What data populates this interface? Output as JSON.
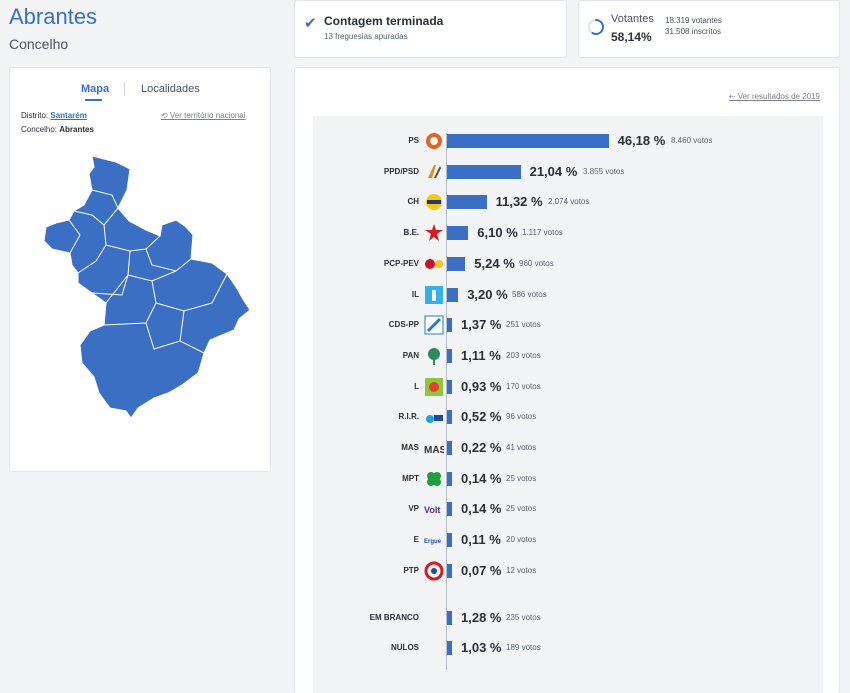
{
  "header": {
    "title": "Abrantes",
    "subtitle": "Concelho"
  },
  "status": {
    "icon": "check-icon",
    "title": "Contagem terminada",
    "subtitle": "13 freguesias apuradas"
  },
  "voters": {
    "label": "Votantes",
    "percent": "58,14%",
    "percent_value": 58.14,
    "count": "18.319 votantes",
    "registered": "31.508 inscritos"
  },
  "map_panel": {
    "tabs": {
      "map": "Mapa",
      "places": "Localidades"
    },
    "district_label": "Distrito:",
    "district_value": "Santarém",
    "county_label": "Concelho:",
    "county_value": "Abrantes",
    "national_link": "⟲ Ver território nacional",
    "map_color": "#3a6fc4"
  },
  "results": {
    "prev_link": "⇠ Ver resultados de 2019",
    "accent": "#3a6fc4",
    "rows": [
      {
        "party": "PS",
        "pct_value": 46.18,
        "pct": "46,18 %",
        "votes": "8.460 votos",
        "logo": "ps-logo",
        "logo_color": "#e8631c"
      },
      {
        "party": "PPD/PSD",
        "pct_value": 21.04,
        "pct": "21,04 %",
        "votes": "3.855 votos",
        "logo": "psd-logo",
        "logo_color": "#f08519"
      },
      {
        "party": "CH",
        "pct_value": 11.32,
        "pct": "11,32 %",
        "votes": "2.074 votos",
        "logo": "chega-logo",
        "logo_color": "#1e3b75"
      },
      {
        "party": "B.E.",
        "pct_value": 6.1,
        "pct": "6,10 %",
        "votes": "1.117 votos",
        "logo": "be-logo",
        "logo_color": "#d71920"
      },
      {
        "party": "PCP-PEV",
        "pct_value": 5.24,
        "pct": "5,24 %",
        "votes": "960 votos",
        "logo": "cdu-logo",
        "logo_color": "#c8102e"
      },
      {
        "party": "IL",
        "pct_value": 3.2,
        "pct": "3,20 %",
        "votes": "586 votos",
        "logo": "il-logo",
        "logo_color": "#35b0e8"
      },
      {
        "party": "CDS-PP",
        "pct_value": 1.37,
        "pct": "1,37 %",
        "votes": "251 votos",
        "logo": "cds-logo",
        "logo_color": "#1f7fc1"
      },
      {
        "party": "PAN",
        "pct_value": 1.11,
        "pct": "1,11 %",
        "votes": "203 votos",
        "logo": "pan-logo",
        "logo_color": "#2e8b57"
      },
      {
        "party": "L",
        "pct_value": 0.93,
        "pct": "0,93 %",
        "votes": "170 votos",
        "logo": "livre-logo",
        "logo_color": "#8dc63f"
      },
      {
        "party": "R.I.R.",
        "pct_value": 0.52,
        "pct": "0,52 %",
        "votes": "96 votos",
        "logo": "rir-logo",
        "logo_color": "#1ea0d8"
      },
      {
        "party": "MAS",
        "pct_value": 0.22,
        "pct": "0,22 %",
        "votes": "41 votos",
        "logo": "mas-logo",
        "logo_color": "#333333"
      },
      {
        "party": "MPT",
        "pct_value": 0.14,
        "pct": "0,14 %",
        "votes": "25 votos",
        "logo": "mpt-logo",
        "logo_color": "#1e9e3e"
      },
      {
        "party": "VP",
        "pct_value": 0.14,
        "pct": "0,14 %",
        "votes": "25 votos",
        "logo": "volt-logo",
        "logo_color": "#5a2d82"
      },
      {
        "party": "E",
        "pct_value": 0.11,
        "pct": "0,11 %",
        "votes": "20 votos",
        "logo": "ergue-te-logo",
        "logo_color": "#1d4d9b"
      },
      {
        "party": "PTP",
        "pct_value": 0.07,
        "pct": "0,07 %",
        "votes": "12 votos",
        "logo": "ptp-logo",
        "logo_color": "#d71920"
      },
      {
        "party": "EM BRANCO",
        "pct_value": 1.28,
        "pct": "1,28 %",
        "votes": "235 votos",
        "logo": "",
        "logo_color": ""
      },
      {
        "party": "NULOS",
        "pct_value": 1.03,
        "pct": "1,03 %",
        "votes": "189 votos",
        "logo": "",
        "logo_color": ""
      }
    ]
  }
}
